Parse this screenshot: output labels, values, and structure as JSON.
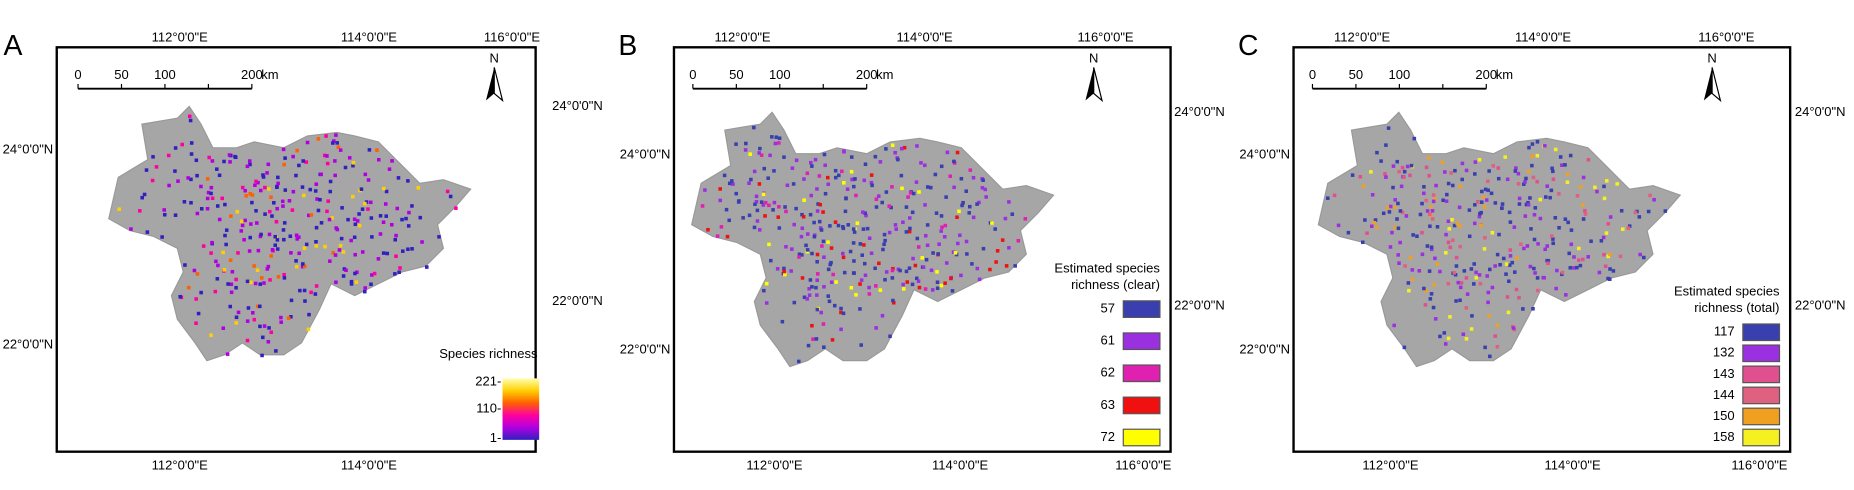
{
  "panels": [
    {
      "label": "A",
      "top_lon_labels": [
        "112°0'0\"E",
        "114°0'0\"E",
        "116°0'0\"E"
      ],
      "bottom_lon_labels": [
        "112°0'0\"E",
        "114°0'0\"E"
      ],
      "left_lat_labels": [
        "24°0'0\"N",
        "22°0'0\"N"
      ],
      "right_lat_labels": [
        "24°0'0\"N",
        "22°0'0\"N"
      ],
      "scale_labels": [
        0,
        50,
        100,
        200
      ],
      "scale_unit": "km",
      "north": "N",
      "legend": {
        "title": "Species richness",
        "labels": [
          "221-",
          "110-",
          "1-"
        ],
        "colors": [
          "#ffffb0",
          "#ffd000",
          "#ff6000",
          "#ff00a0",
          "#b000e0",
          "#3020c0"
        ]
      }
    },
    {
      "label": "B",
      "top_lon_labels": [
        "112°0'0\"E",
        "114°0'0\"E",
        "116°0'0\"E"
      ],
      "bottom_lon_labels": [
        "112°0'0\"E",
        "114°0'0\"E",
        "116°0'0\"E"
      ],
      "left_lat_labels": [
        "24°0'0\"N",
        "22°0'0\"N"
      ],
      "right_lat_labels": [
        "24°0'0\"N",
        "22°0'0\"N"
      ],
      "scale_labels": [
        0,
        50,
        100,
        200
      ],
      "scale_unit": "km",
      "north": "N",
      "legend": {
        "title_lines": [
          "Estimated species",
          "richness (clear)"
        ],
        "entries": [
          {
            "value": 57,
            "color": "#3a3fb0"
          },
          {
            "value": 61,
            "color": "#9b30e0"
          },
          {
            "value": 62,
            "color": "#e020b0"
          },
          {
            "value": 63,
            "color": "#f01010"
          },
          {
            "value": 72,
            "color": "#ffff00"
          }
        ]
      }
    },
    {
      "label": "C",
      "top_lon_labels": [
        "112°0'0\"E",
        "114°0'0\"E",
        "116°0'0\"E"
      ],
      "bottom_lon_labels": [
        "112°0'0\"E",
        "114°0'0\"E",
        "116°0'0\"E"
      ],
      "left_lat_labels": [
        "24°0'0\"N",
        "22°0'0\"N"
      ],
      "right_lat_labels": [
        "24°0'0\"N",
        "22°0'0\"N"
      ],
      "scale_labels": [
        0,
        50,
        100,
        200
      ],
      "scale_unit": "km",
      "north": "N",
      "legend": {
        "title_lines": [
          "Estimated species",
          "richness (total)"
        ],
        "entries": [
          {
            "value": 117,
            "color": "#3a3fb0"
          },
          {
            "value": 132,
            "color": "#9b30e0"
          },
          {
            "value": 143,
            "color": "#e0508e"
          },
          {
            "value": 144,
            "color": "#e06080"
          },
          {
            "value": 150,
            "color": "#f0a020"
          },
          {
            "value": 158,
            "color": "#f5f020"
          }
        ]
      }
    }
  ]
}
